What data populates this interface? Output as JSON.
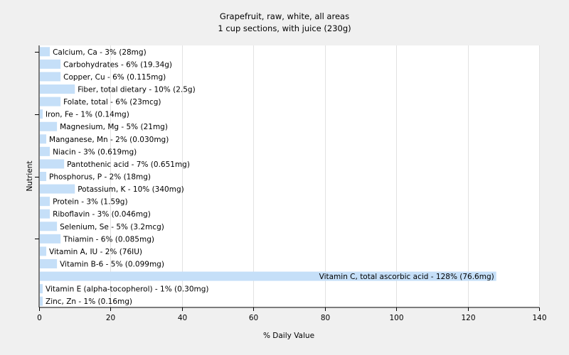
{
  "chart_data": {
    "type": "bar",
    "orientation": "horizontal",
    "title": "Grapefruit, raw, white, all areas",
    "subtitle": "1 cup sections, with juice (230g)",
    "xlabel": "% Daily Value",
    "ylabel": "Nutrient",
    "xlim": [
      0,
      140
    ],
    "xticks": [
      0,
      20,
      40,
      60,
      80,
      100,
      120,
      140
    ],
    "grid": true,
    "bar_color": "#c5dff8",
    "categories": [
      "Calcium, Ca",
      "Carbohydrates",
      "Copper, Cu",
      "Fiber, total dietary",
      "Folate, total",
      "Iron, Fe",
      "Magnesium, Mg",
      "Manganese, Mn",
      "Niacin",
      "Pantothenic acid",
      "Phosphorus, P",
      "Potassium, K",
      "Protein",
      "Riboflavin",
      "Selenium, Se",
      "Thiamin",
      "Vitamin A, IU",
      "Vitamin B-6",
      "Vitamin C, total ascorbic acid",
      "Vitamin E (alpha-tocopherol)",
      "Zinc, Zn"
    ],
    "values": [
      3,
      6,
      6,
      10,
      6,
      1,
      5,
      2,
      3,
      7,
      2,
      10,
      3,
      3,
      5,
      6,
      2,
      5,
      128,
      1,
      1
    ],
    "labels": [
      "Calcium, Ca - 3% (28mg)",
      "Carbohydrates - 6% (19.34g)",
      "Copper, Cu - 6% (0.115mg)",
      "Fiber, total dietary - 10% (2.5g)",
      "Folate, total - 6% (23mcg)",
      "Iron, Fe - 1% (0.14mg)",
      "Magnesium, Mg - 5% (21mg)",
      "Manganese, Mn - 2% (0.030mg)",
      "Niacin - 3% (0.619mg)",
      "Pantothenic acid - 7% (0.651mg)",
      "Phosphorus, P - 2% (18mg)",
      "Potassium, K - 10% (340mg)",
      "Protein - 3% (1.59g)",
      "Riboflavin - 3% (0.046mg)",
      "Selenium, Se - 5% (3.2mcg)",
      "Thiamin - 6% (0.085mg)",
      "Vitamin A, IU - 2% (76IU)",
      "Vitamin B-6 - 5% (0.099mg)",
      "Vitamin C, total ascorbic acid - 128% (76.6mg)",
      "Vitamin E (alpha-tocopherol) - 1% (0.30mg)",
      "Zinc, Zn - 1% (0.16mg)"
    ]
  }
}
